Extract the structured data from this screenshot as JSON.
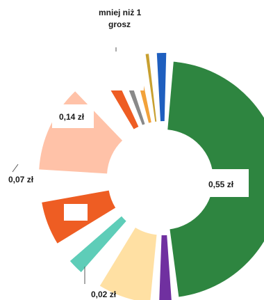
{
  "chart_data": {
    "type": "pie",
    "variant": "exploded-donut",
    "slices": [
      {
        "value": 0.55,
        "color": "#2e8540"
      },
      {
        "value": 0.02,
        "color": "#7030a0"
      },
      {
        "value": 0.085,
        "color": "#ffe0a3"
      },
      {
        "value": 0.01,
        "color": "#ffffff"
      },
      {
        "value": 0.025,
        "color": "#5ecdb8"
      },
      {
        "value": 0.008,
        "color": "#ffffff"
      },
      {
        "value": 0.07,
        "color": "#ee5d23"
      },
      {
        "value": 0.022,
        "color": "#ffffff"
      },
      {
        "value": 0.14,
        "color": "#ffc2a8"
      },
      {
        "value": 0.02,
        "color": "#ffffff"
      },
      {
        "value": 0.02,
        "color": "#ee5d23"
      },
      {
        "value": 0.01,
        "color": "#898989"
      },
      {
        "value": 0.01,
        "color": "#f2a23a"
      },
      {
        "value": 0.005,
        "color": "#c8a030"
      },
      {
        "value": 0.015,
        "color": "#1f5fbf"
      }
    ],
    "labels": [
      {
        "text": "0,55 zł"
      },
      {
        "text": "0,02 zł"
      },
      {
        "text": "0,07 zł"
      },
      {
        "text": "0,14 zł"
      },
      {
        "text": "mniej niż 1"
      },
      {
        "text": "grosz"
      }
    ]
  }
}
